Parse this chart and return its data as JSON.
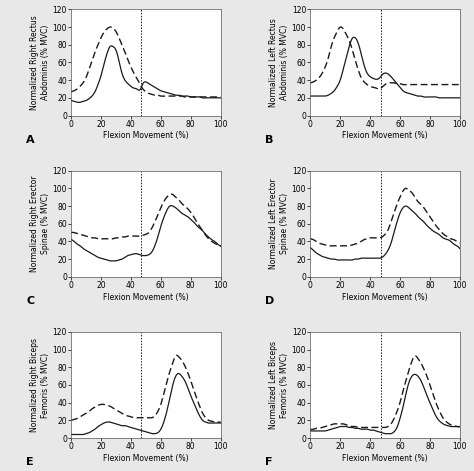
{
  "panels": [
    {
      "label": "A",
      "ylabel": "Normalized Right Rectus\nAbdominis (% MVC)",
      "xlabel": "Flexion Movement (%)",
      "vline": 47,
      "ylim": [
        0,
        120
      ],
      "yticks": [
        0,
        20,
        40,
        60,
        80,
        100,
        120
      ],
      "solid_x": [
        0,
        2,
        4,
        6,
        8,
        10,
        12,
        14,
        16,
        18,
        20,
        22,
        24,
        26,
        28,
        30,
        32,
        34,
        36,
        38,
        40,
        42,
        44,
        46,
        48,
        50,
        52,
        54,
        56,
        58,
        60,
        62,
        64,
        66,
        68,
        70,
        72,
        74,
        76,
        78,
        80,
        82,
        84,
        86,
        88,
        90,
        92,
        94,
        96,
        98,
        100
      ],
      "solid_y": [
        17,
        16,
        15,
        15,
        16,
        17,
        19,
        22,
        27,
        35,
        45,
        58,
        70,
        78,
        78,
        74,
        62,
        48,
        40,
        36,
        33,
        31,
        30,
        29,
        36,
        38,
        36,
        34,
        32,
        30,
        28,
        27,
        26,
        25,
        24,
        23,
        23,
        22,
        22,
        22,
        21,
        21,
        21,
        21,
        20,
        20,
        20,
        20,
        20,
        20,
        20
      ],
      "dashed_x": [
        0,
        2,
        4,
        6,
        8,
        10,
        12,
        14,
        16,
        18,
        20,
        22,
        24,
        26,
        28,
        30,
        32,
        34,
        36,
        38,
        40,
        42,
        44,
        46,
        48,
        50,
        52,
        54,
        56,
        58,
        60,
        62,
        64,
        66,
        68,
        70,
        72,
        74,
        76,
        78,
        80,
        82,
        84,
        86,
        88,
        90,
        92,
        94,
        96,
        98,
        100
      ],
      "dashed_y": [
        27,
        28,
        30,
        33,
        37,
        43,
        52,
        62,
        72,
        80,
        88,
        94,
        98,
        100,
        99,
        95,
        88,
        80,
        72,
        63,
        55,
        48,
        42,
        36,
        30,
        27,
        25,
        24,
        23,
        23,
        22,
        22,
        22,
        22,
        22,
        22,
        22,
        22,
        21,
        21,
        21,
        21,
        21,
        21,
        21,
        21,
        21,
        21,
        21,
        21,
        21
      ]
    },
    {
      "label": "B",
      "ylabel": "Normalized Left Rectus\nAbdominis (% MVC)",
      "xlabel": "Flexion Movement (%)",
      "vline": 47,
      "ylim": [
        0,
        120
      ],
      "yticks": [
        0,
        20,
        40,
        60,
        80,
        100,
        120
      ],
      "solid_x": [
        0,
        2,
        4,
        6,
        8,
        10,
        12,
        14,
        16,
        18,
        20,
        22,
        24,
        26,
        28,
        30,
        32,
        34,
        36,
        38,
        40,
        42,
        44,
        46,
        48,
        50,
        52,
        54,
        56,
        58,
        60,
        62,
        64,
        66,
        68,
        70,
        72,
        74,
        76,
        78,
        80,
        82,
        84,
        86,
        88,
        90,
        92,
        94,
        96,
        98,
        100
      ],
      "solid_y": [
        22,
        22,
        22,
        22,
        22,
        22,
        23,
        25,
        28,
        33,
        40,
        52,
        65,
        78,
        87,
        88,
        82,
        70,
        57,
        48,
        44,
        42,
        41,
        42,
        46,
        48,
        47,
        44,
        40,
        36,
        32,
        28,
        26,
        25,
        24,
        23,
        22,
        22,
        21,
        21,
        21,
        21,
        21,
        20,
        20,
        20,
        20,
        20,
        20,
        20,
        20
      ],
      "dashed_x": [
        0,
        2,
        4,
        6,
        8,
        10,
        12,
        14,
        16,
        18,
        20,
        22,
        24,
        26,
        28,
        30,
        32,
        34,
        36,
        38,
        40,
        42,
        44,
        46,
        48,
        50,
        52,
        54,
        56,
        58,
        60,
        62,
        64,
        66,
        68,
        70,
        72,
        74,
        76,
        78,
        80,
        82,
        84,
        86,
        88,
        90,
        92,
        94,
        96,
        98,
        100
      ],
      "dashed_y": [
        37,
        38,
        40,
        43,
        48,
        55,
        65,
        78,
        88,
        95,
        100,
        98,
        92,
        85,
        75,
        63,
        52,
        43,
        38,
        35,
        33,
        32,
        31,
        30,
        32,
        35,
        37,
        37,
        37,
        36,
        36,
        35,
        35,
        35,
        35,
        35,
        35,
        35,
        35,
        35,
        35,
        35,
        35,
        35,
        35,
        35,
        35,
        35,
        35,
        35,
        35
      ]
    },
    {
      "label": "C",
      "ylabel": "Normalized Right Erector\nSpinae (% MVC)",
      "xlabel": "Flexion Movement (%)",
      "vline": 47,
      "ylim": [
        0,
        120
      ],
      "yticks": [
        0,
        20,
        40,
        60,
        80,
        100,
        120
      ],
      "solid_x": [
        0,
        2,
        4,
        6,
        8,
        10,
        12,
        14,
        16,
        18,
        20,
        22,
        24,
        26,
        28,
        30,
        32,
        34,
        36,
        38,
        40,
        42,
        44,
        46,
        48,
        50,
        52,
        54,
        56,
        58,
        60,
        62,
        64,
        66,
        68,
        70,
        72,
        74,
        76,
        78,
        80,
        82,
        84,
        86,
        88,
        90,
        92,
        94,
        96,
        98,
        100
      ],
      "solid_y": [
        42,
        40,
        37,
        35,
        32,
        30,
        28,
        26,
        24,
        22,
        21,
        20,
        19,
        18,
        18,
        18,
        19,
        20,
        22,
        24,
        25,
        26,
        26,
        25,
        24,
        24,
        25,
        28,
        35,
        45,
        57,
        67,
        75,
        80,
        80,
        78,
        75,
        72,
        70,
        68,
        65,
        62,
        58,
        55,
        52,
        48,
        45,
        42,
        40,
        37,
        35
      ],
      "dashed_x": [
        0,
        2,
        4,
        6,
        8,
        10,
        12,
        14,
        16,
        18,
        20,
        22,
        24,
        26,
        28,
        30,
        32,
        34,
        36,
        38,
        40,
        42,
        44,
        46,
        48,
        50,
        52,
        54,
        56,
        58,
        60,
        62,
        64,
        66,
        68,
        70,
        72,
        74,
        76,
        78,
        80,
        82,
        84,
        86,
        88,
        90,
        92,
        94,
        96,
        98,
        100
      ],
      "dashed_y": [
        50,
        50,
        49,
        48,
        47,
        46,
        45,
        44,
        44,
        43,
        43,
        43,
        43,
        43,
        43,
        44,
        44,
        45,
        45,
        46,
        46,
        46,
        46,
        46,
        47,
        48,
        50,
        55,
        62,
        70,
        78,
        85,
        90,
        93,
        93,
        90,
        87,
        83,
        80,
        77,
        73,
        68,
        62,
        57,
        52,
        47,
        43,
        40,
        38,
        36,
        34
      ]
    },
    {
      "label": "D",
      "ylabel": "Normalized Left Erector\nSpinae (% MVC)",
      "xlabel": "Flexion Movement (%)",
      "vline": 47,
      "ylim": [
        0,
        120
      ],
      "yticks": [
        0,
        20,
        40,
        60,
        80,
        100,
        120
      ],
      "solid_x": [
        0,
        2,
        4,
        6,
        8,
        10,
        12,
        14,
        16,
        18,
        20,
        22,
        24,
        26,
        28,
        30,
        32,
        34,
        36,
        38,
        40,
        42,
        44,
        46,
        48,
        50,
        52,
        54,
        56,
        58,
        60,
        62,
        64,
        66,
        68,
        70,
        72,
        74,
        76,
        78,
        80,
        82,
        84,
        86,
        88,
        90,
        92,
        94,
        96,
        98,
        100
      ],
      "solid_y": [
        33,
        30,
        27,
        25,
        23,
        22,
        21,
        20,
        20,
        19,
        19,
        19,
        19,
        19,
        19,
        20,
        20,
        21,
        21,
        21,
        21,
        21,
        21,
        21,
        22,
        25,
        30,
        38,
        50,
        62,
        72,
        78,
        80,
        78,
        75,
        72,
        68,
        65,
        62,
        58,
        55,
        52,
        50,
        48,
        45,
        43,
        42,
        40,
        37,
        35,
        32
      ],
      "dashed_x": [
        0,
        2,
        4,
        6,
        8,
        10,
        12,
        14,
        16,
        18,
        20,
        22,
        24,
        26,
        28,
        30,
        32,
        34,
        36,
        38,
        40,
        42,
        44,
        46,
        48,
        50,
        52,
        54,
        56,
        58,
        60,
        62,
        64,
        66,
        68,
        70,
        72,
        74,
        76,
        78,
        80,
        82,
        84,
        86,
        88,
        90,
        92,
        94,
        96,
        98,
        100
      ],
      "dashed_y": [
        43,
        42,
        40,
        38,
        37,
        36,
        35,
        35,
        35,
        35,
        35,
        35,
        35,
        35,
        36,
        37,
        38,
        40,
        42,
        43,
        44,
        44,
        44,
        44,
        45,
        48,
        53,
        62,
        72,
        82,
        90,
        97,
        100,
        98,
        95,
        90,
        85,
        82,
        78,
        73,
        68,
        63,
        58,
        54,
        50,
        47,
        45,
        43,
        42,
        40,
        38
      ]
    },
    {
      "label": "E",
      "ylabel": "Normalized Right Biceps\nFemoris (% MVC)",
      "xlabel": "Flexion Movement (%)",
      "vline": 47,
      "ylim": [
        0,
        120
      ],
      "yticks": [
        0,
        20,
        40,
        60,
        80,
        100,
        120
      ],
      "solid_x": [
        0,
        2,
        4,
        6,
        8,
        10,
        12,
        14,
        16,
        18,
        20,
        22,
        24,
        26,
        28,
        30,
        32,
        34,
        36,
        38,
        40,
        42,
        44,
        46,
        48,
        50,
        52,
        54,
        56,
        58,
        60,
        62,
        64,
        66,
        68,
        70,
        72,
        74,
        76,
        78,
        80,
        82,
        84,
        86,
        88,
        90,
        92,
        94,
        96,
        98,
        100
      ],
      "solid_y": [
        4,
        4,
        4,
        4,
        4,
        5,
        6,
        8,
        10,
        13,
        15,
        17,
        18,
        18,
        17,
        16,
        15,
        14,
        14,
        13,
        12,
        11,
        10,
        9,
        8,
        7,
        6,
        5,
        5,
        6,
        10,
        18,
        30,
        45,
        60,
        70,
        73,
        70,
        65,
        57,
        48,
        40,
        32,
        25,
        20,
        18,
        17,
        17,
        17,
        17,
        17
      ],
      "dashed_x": [
        0,
        2,
        4,
        6,
        8,
        10,
        12,
        14,
        16,
        18,
        20,
        22,
        24,
        26,
        28,
        30,
        32,
        34,
        36,
        38,
        40,
        42,
        44,
        46,
        48,
        50,
        52,
        54,
        56,
        58,
        60,
        62,
        64,
        66,
        68,
        70,
        72,
        74,
        76,
        78,
        80,
        82,
        84,
        86,
        88,
        90,
        92,
        94,
        96,
        98,
        100
      ],
      "dashed_y": [
        20,
        21,
        22,
        24,
        26,
        28,
        30,
        33,
        35,
        37,
        38,
        38,
        37,
        36,
        34,
        32,
        30,
        28,
        26,
        25,
        24,
        23,
        23,
        23,
        23,
        23,
        23,
        23,
        25,
        30,
        38,
        50,
        63,
        75,
        85,
        93,
        92,
        88,
        82,
        74,
        65,
        55,
        45,
        36,
        28,
        23,
        20,
        19,
        18,
        18,
        18
      ]
    },
    {
      "label": "F",
      "ylabel": "Normalized Left Biceps\nFemoris (% MVC)",
      "xlabel": "Flexion Movement (%)",
      "vline": 47,
      "ylim": [
        0,
        120
      ],
      "yticks": [
        0,
        20,
        40,
        60,
        80,
        100,
        120
      ],
      "solid_x": [
        0,
        2,
        4,
        6,
        8,
        10,
        12,
        14,
        16,
        18,
        20,
        22,
        24,
        26,
        28,
        30,
        32,
        34,
        36,
        38,
        40,
        42,
        44,
        46,
        48,
        50,
        52,
        54,
        56,
        58,
        60,
        62,
        64,
        66,
        68,
        70,
        72,
        74,
        76,
        78,
        80,
        82,
        84,
        86,
        88,
        90,
        92,
        94,
        96,
        98,
        100
      ],
      "solid_y": [
        8,
        8,
        8,
        8,
        8,
        8,
        9,
        10,
        11,
        12,
        13,
        13,
        13,
        12,
        12,
        11,
        11,
        10,
        10,
        10,
        9,
        9,
        8,
        7,
        6,
        5,
        5,
        5,
        7,
        12,
        22,
        35,
        50,
        63,
        70,
        72,
        70,
        65,
        57,
        48,
        40,
        32,
        25,
        20,
        17,
        15,
        14,
        13,
        13,
        13,
        13
      ],
      "dashed_x": [
        0,
        2,
        4,
        6,
        8,
        10,
        12,
        14,
        16,
        18,
        20,
        22,
        24,
        26,
        28,
        30,
        32,
        34,
        36,
        38,
        40,
        42,
        44,
        46,
        48,
        50,
        52,
        54,
        56,
        58,
        60,
        62,
        64,
        66,
        68,
        70,
        72,
        74,
        76,
        78,
        80,
        82,
        84,
        86,
        88,
        90,
        92,
        94,
        96,
        98,
        100
      ],
      "dashed_y": [
        10,
        10,
        11,
        11,
        12,
        13,
        14,
        15,
        16,
        16,
        16,
        16,
        15,
        14,
        13,
        13,
        12,
        12,
        12,
        12,
        12,
        12,
        12,
        12,
        12,
        12,
        13,
        16,
        22,
        30,
        40,
        53,
        65,
        77,
        87,
        93,
        90,
        85,
        78,
        70,
        60,
        50,
        40,
        32,
        25,
        20,
        17,
        15,
        14,
        13,
        13
      ]
    }
  ],
  "line_color": "#1a1a1a",
  "bg_color": "#e8e8e8",
  "plot_bg_color": "#ffffff",
  "fontsize_label": 5.5,
  "fontsize_tick": 5.5,
  "fontsize_panel_label": 8
}
